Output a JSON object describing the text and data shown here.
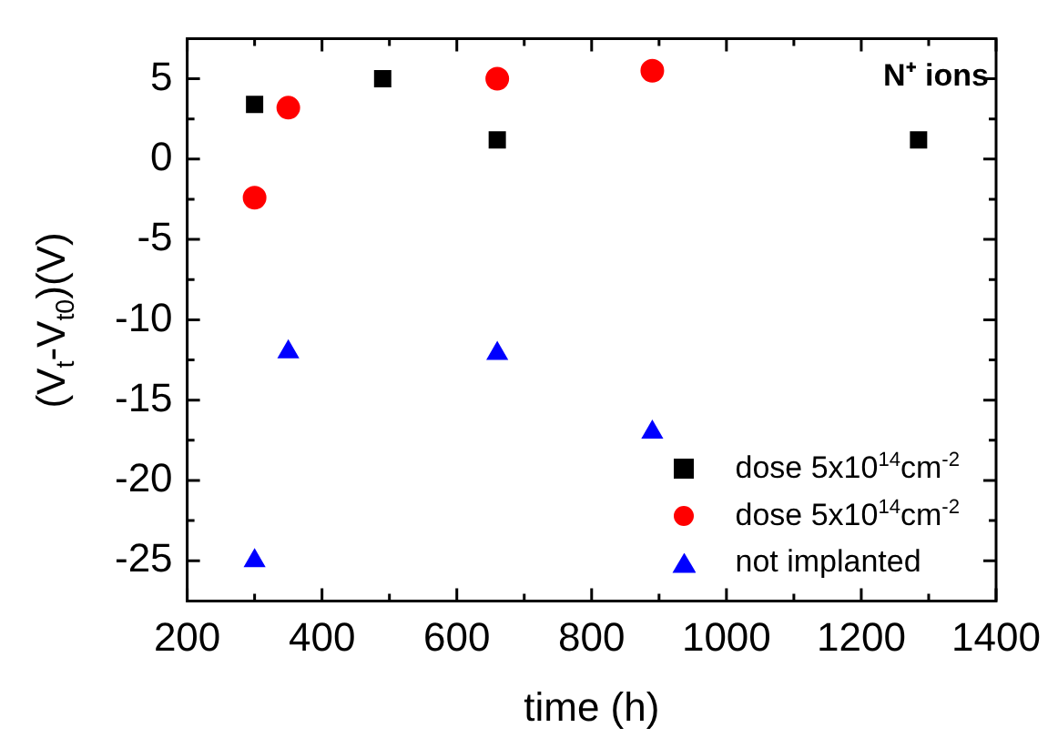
{
  "chart_data": {
    "type": "scatter",
    "xlabel": "time (h)",
    "ylabel": "(V$_{t}$-V$_{t0}$)(V)",
    "xlim": [
      200,
      1400
    ],
    "xticks": [
      200,
      400,
      600,
      800,
      1000,
      1200,
      1400
    ],
    "ylim": [
      -27.5,
      7.5
    ],
    "yticks": [
      -25,
      -20,
      -15,
      -10,
      -5,
      0,
      5
    ],
    "grid": false,
    "legend": "bottom right",
    "annotations": [
      "N⁺ ions"
    ],
    "series": [
      {
        "name": "dose 5x10$^{14}$cm$^{-2}$",
        "color": "#000000",
        "marker": "square",
        "x": [
          300,
          490,
          660,
          1285
        ],
        "values": [
          3.4,
          5,
          1.2,
          1.2
        ]
      },
      {
        "name": "dose 5x10$^{14}$cm$^{-2}$",
        "color": "#ff0000",
        "marker": "circle",
        "x": [
          300,
          350,
          660,
          890
        ],
        "values": [
          -2.4,
          3.2,
          5,
          5.5
        ]
      },
      {
        "name": "not implanted",
        "color": "#0000ff",
        "marker": "triangle",
        "x": [
          300,
          350,
          660,
          890
        ],
        "values": [
          -25,
          -12,
          -12.1,
          -17
        ]
      }
    ]
  }
}
